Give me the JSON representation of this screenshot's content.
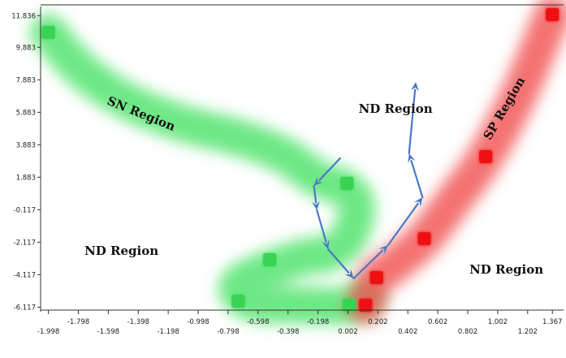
{
  "chart_data": {
    "type": "scatter",
    "title": "",
    "xlabel": "",
    "ylabel": "",
    "xlim": [
      -2.05,
      1.42
    ],
    "ylim": [
      -6.3,
      12.2
    ],
    "grid": false,
    "x_ticks_major": [
      "-1.998",
      "-1.598",
      "-1.198",
      "-0.798",
      "-0.398",
      "0.002",
      "0.402",
      "0.802",
      "1.202"
    ],
    "x_ticks_minor": [
      "-1.798",
      "-1.398",
      "-0.998",
      "-0.598",
      "-0.198",
      "0.202",
      "0.602",
      "1.002",
      "1.367"
    ],
    "y_ticks": [
      "11.836",
      "9.883",
      "7.883",
      "5.883",
      "3.883",
      "1.883",
      "-0.117",
      "-2.117",
      "-4.117",
      "-6.117"
    ],
    "series": [
      {
        "color": "#39d353",
        "marker": "square",
        "x": [
          -1.998,
          -0.005,
          -0.52,
          -0.73,
          0.01
        ],
        "y": [
          10.8,
          1.5,
          -3.2,
          -5.75,
          -6.0
        ]
      },
      {
        "color": "#ee1111",
        "marker": "square",
        "x": [
          1.367,
          0.922,
          0.512,
          0.193,
          0.12
        ],
        "y": [
          11.9,
          3.15,
          -1.9,
          -4.3,
          -6.0
        ]
      }
    ],
    "bands": [
      {
        "color": "#4ee36a",
        "points": [
          [
            -1.998,
            10.8
          ],
          [
            -1.79,
            8.6
          ],
          [
            -1.48,
            6.6
          ],
          [
            -1.1,
            5.2
          ],
          [
            -0.72,
            4.3
          ],
          [
            -0.42,
            3.2
          ],
          [
            -0.2,
            1.8
          ],
          [
            -0.02,
            1.2
          ],
          [
            0.06,
            0.2
          ],
          [
            0.02,
            -1.6
          ],
          [
            -0.1,
            -2.7
          ],
          [
            -0.35,
            -3.2
          ],
          [
            -0.72,
            -4.6
          ],
          [
            -0.65,
            -5.8
          ],
          [
            -0.3,
            -6.0
          ],
          [
            0.01,
            -6.0
          ],
          [
            0.12,
            -5.5
          ]
        ]
      },
      {
        "color": "#f25252",
        "points": [
          [
            1.367,
            11.9
          ],
          [
            1.15,
            7.1
          ],
          [
            0.922,
            3.15
          ],
          [
            0.72,
            0.6
          ],
          [
            0.512,
            -1.9
          ],
          [
            0.3,
            -3.6
          ],
          [
            0.193,
            -4.3
          ],
          [
            0.12,
            -6.0
          ]
        ]
      }
    ],
    "arrow_path": {
      "color": "#4a78c4",
      "points": [
        [
          -0.05,
          3.05
        ],
        [
          -0.225,
          1.35
        ],
        [
          -0.205,
          -0.15
        ],
        [
          -0.13,
          -2.55
        ],
        [
          0.04,
          -4.35
        ],
        [
          0.27,
          -2.3
        ],
        [
          0.5,
          0.65
        ],
        [
          0.41,
          3.35
        ],
        [
          0.455,
          7.75
        ]
      ]
    },
    "annotations": [
      {
        "text": "SN Region",
        "x": -1.38,
        "y": 5.75,
        "rotate": 22
      },
      {
        "text": "SP Region",
        "x": 1.05,
        "y": 6.1,
        "rotate": -60
      },
      {
        "text": "ND Region",
        "x": 0.32,
        "y": 6.05,
        "rotate": 0
      },
      {
        "text": "ND Region",
        "x": -1.51,
        "y": -2.7,
        "rotate": 0
      },
      {
        "text": "ND Region",
        "x": 1.06,
        "y": -3.85,
        "rotate": 0
      }
    ]
  }
}
